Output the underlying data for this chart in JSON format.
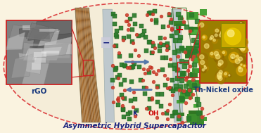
{
  "background_color": "#faf3e0",
  "ellipse_facecolor": "#f5edd8",
  "ellipse_edgecolor": "#dd4444",
  "title_text": "Asymmetric Hybrid Supercapacitor",
  "title_color": "#1a237e",
  "title_fontsize": 7.5,
  "label_rgo": "rGO",
  "label_nickel": "Th-Nickel oxide",
  "label_color": "#1a3a7e",
  "minus_color": "#1a237e",
  "plus_color": "#cc0000",
  "k_color": "#1a237e",
  "oh_color": "#cc0000",
  "green_dot_color": "#2a7a2a",
  "red_dot_color": "#d04030",
  "rgo_plate_color1": "#c8a060",
  "rgo_plate_color2": "#b08040",
  "sep_plate_color": "#c0ccd8",
  "nio_plate_color": "#6a9a50",
  "arrow_color": "#5577aa",
  "red_box_color": "#cc2222",
  "rgo_sem_bg": "#808080",
  "nik_sem_bg": "#b89000"
}
